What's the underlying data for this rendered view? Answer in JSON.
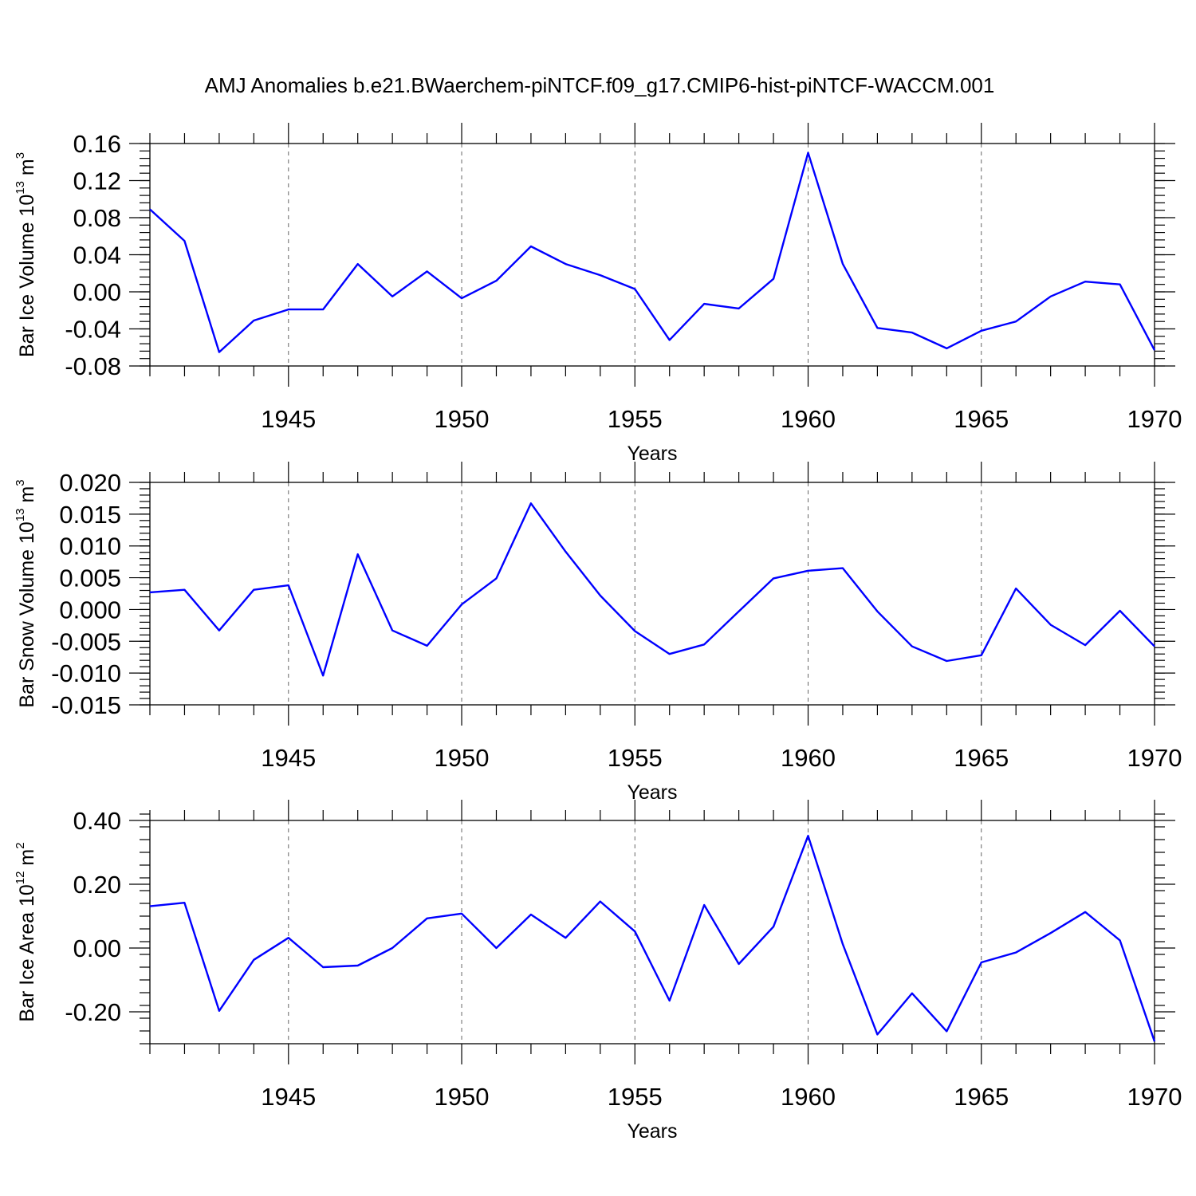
{
  "title": "AMJ Anomalies b.e21.BWaerchem-piNTCF.f09_g17.CMIP6-hist-piNTCF-WACCM.001",
  "colors": {
    "line": "#0000ff",
    "grid": "#666666"
  },
  "chart_data": [
    {
      "type": "line",
      "ylabel": {
        "text": "Bar Ice Volume 10",
        "sup": "13",
        "unit": " m",
        "unit_sup": "3"
      },
      "xlabel": "Years",
      "xlim": [
        1941,
        1970
      ],
      "ylim": [
        -0.08,
        0.16
      ],
      "yticks": [
        "-0.08",
        "-0.04",
        "0.00",
        "0.04",
        "0.08",
        "0.12",
        "0.16"
      ],
      "xticks": [
        "1945",
        "1950",
        "1955",
        "1960",
        "1965",
        "1970"
      ],
      "grid": "vertical dashed at labeled years",
      "x": [
        1941,
        1942,
        1943,
        1944,
        1945,
        1946,
        1947,
        1948,
        1949,
        1950,
        1951,
        1952,
        1953,
        1954,
        1955,
        1956,
        1957,
        1958,
        1959,
        1960,
        1961,
        1962,
        1963,
        1964,
        1965,
        1966,
        1967,
        1968,
        1969,
        1970
      ],
      "values": [
        0.089,
        0.055,
        -0.065,
        -0.031,
        -0.019,
        -0.019,
        0.03,
        -0.005,
        0.022,
        -0.007,
        0.012,
        0.049,
        0.03,
        0.018,
        0.003,
        -0.052,
        -0.013,
        -0.018,
        0.014,
        0.15,
        0.03,
        -0.039,
        -0.044,
        -0.061,
        -0.042,
        -0.032,
        -0.005,
        0.011,
        0.008,
        -0.063
      ]
    },
    {
      "type": "line",
      "ylabel": {
        "text": "Bar Snow Volume 10",
        "sup": "13",
        "unit": " m",
        "unit_sup": "3"
      },
      "xlabel": "Years",
      "xlim": [
        1941,
        1970
      ],
      "ylim": [
        -0.015,
        0.02
      ],
      "yticks": [
        "-0.015",
        "-0.010",
        "-0.005",
        "0.000",
        "0.005",
        "0.010",
        "0.015",
        "0.020"
      ],
      "xticks": [
        "1945",
        "1950",
        "1955",
        "1960",
        "1965",
        "1970"
      ],
      "grid": "vertical dashed at labeled years",
      "x": [
        1941,
        1942,
        1943,
        1944,
        1945,
        1946,
        1947,
        1948,
        1949,
        1950,
        1951,
        1952,
        1953,
        1954,
        1955,
        1956,
        1957,
        1958,
        1959,
        1960,
        1961,
        1962,
        1963,
        1964,
        1965,
        1966,
        1967,
        1968,
        1969,
        1970
      ],
      "values": [
        0.0027,
        0.0031,
        -0.0033,
        0.0031,
        0.0038,
        -0.0104,
        0.0087,
        -0.0033,
        -0.0057,
        0.0008,
        0.0049,
        0.0167,
        0.0091,
        0.0022,
        -0.0034,
        -0.007,
        -0.0055,
        -0.0003,
        0.0049,
        0.0061,
        0.0065,
        -0.0003,
        -0.0058,
        -0.0081,
        -0.0072,
        0.0033,
        -0.0024,
        -0.0056,
        -0.0002,
        -0.0058
      ]
    },
    {
      "type": "line",
      "ylabel": {
        "text": "Bar Ice Area 10",
        "sup": "12",
        "unit": " m",
        "unit_sup": "2"
      },
      "xlabel": "Years",
      "xlim": [
        1941,
        1970
      ],
      "ylim": [
        -0.3,
        0.4
      ],
      "yticks": [
        "-0.20",
        "0.00",
        "0.20",
        "0.40"
      ],
      "xticks": [
        "1945",
        "1950",
        "1955",
        "1960",
        "1965",
        "1970"
      ],
      "grid": "vertical dashed at labeled years",
      "x": [
        1941,
        1942,
        1943,
        1944,
        1945,
        1946,
        1947,
        1948,
        1949,
        1950,
        1951,
        1952,
        1953,
        1954,
        1955,
        1956,
        1957,
        1958,
        1959,
        1960,
        1961,
        1962,
        1963,
        1964,
        1965,
        1966,
        1967,
        1968,
        1969,
        1970
      ],
      "values": [
        0.131,
        0.142,
        -0.197,
        -0.037,
        0.032,
        -0.06,
        -0.055,
        0.0,
        0.093,
        0.108,
        0.0,
        0.105,
        0.032,
        0.146,
        0.052,
        -0.165,
        0.135,
        -0.05,
        0.067,
        0.352,
        0.012,
        -0.271,
        -0.142,
        -0.261,
        -0.045,
        -0.014,
        0.047,
        0.113,
        0.024,
        -0.293
      ]
    }
  ]
}
